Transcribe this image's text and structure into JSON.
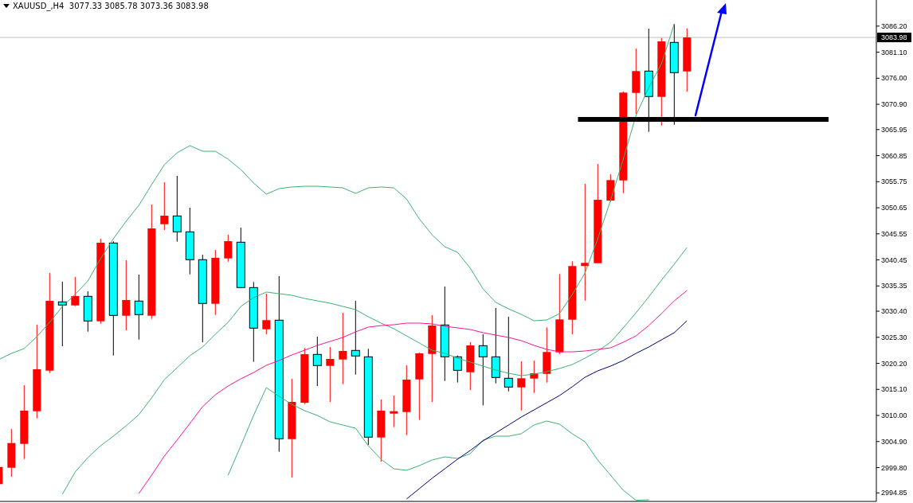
{
  "chart_data": {
    "type": "candlestick",
    "title": "XAUUSD_,H4  3077.33 3085.78 3073.36 3083.98",
    "categories": [
      null,
      null,
      null,
      null,
      null,
      null,
      null,
      null,
      null,
      null,
      null,
      null,
      null,
      null,
      null,
      null,
      null,
      null,
      null,
      null,
      null,
      null,
      null,
      null,
      null,
      null,
      null,
      null,
      null,
      null,
      null,
      null,
      null,
      null,
      null,
      null,
      null,
      null,
      null,
      null,
      null,
      null,
      null,
      null,
      null,
      null,
      null,
      null,
      null,
      null,
      null,
      null,
      null,
      null,
      null
    ],
    "ohlc": [
      [
        2996.56,
        3000.3,
        2996.3,
        2999.92
      ],
      [
        2999.77,
        3007.35,
        2998.01,
        3004.6
      ],
      [
        3004.44,
        3015.92,
        3001.48,
        3010.94
      ],
      [
        3010.83,
        3027.76,
        3009.43,
        3019.04
      ],
      [
        3018.77,
        3037.88,
        3018.3,
        3032.43
      ],
      [
        3032.23,
        3036.17,
        3023.55,
        3031.61
      ],
      [
        3031.54,
        3037.11,
        3031.39,
        3033.37
      ],
      [
        3033.32,
        3034.3,
        3026.4,
        3028.49
      ],
      [
        3028.43,
        3044.58,
        3027.96,
        3043.8
      ],
      [
        3043.75,
        3044.07,
        3021.73,
        3029.58
      ],
      [
        3029.52,
        3040.38,
        3026.67,
        3032.59
      ],
      [
        3032.39,
        3037.57,
        3024.85,
        3029.74
      ],
      [
        3029.52,
        3051.28,
        3028.9,
        3046.61
      ],
      [
        3047.43,
        3055.64,
        3046.29,
        3049.1
      ],
      [
        3049.05,
        3056.89,
        3044.01,
        3045.94
      ],
      [
        3045.94,
        3050.66,
        3037.62,
        3040.49
      ],
      [
        3040.49,
        3041.47,
        3024.33,
        3031.92
      ],
      [
        3031.86,
        3042.4,
        3029.68,
        3040.85
      ],
      [
        3040.74,
        3045.36,
        3040.11,
        3044.11
      ],
      [
        3043.91,
        3046.76,
        3035.03,
        3035.03
      ],
      [
        3035.03,
        3036.12,
        3020.49,
        3027.09
      ],
      [
        3026.87,
        3033.83,
        3025.89,
        3028.65
      ],
      [
        3028.65,
        3037.26,
        3002.89,
        3005.44
      ],
      [
        3005.37,
        3017.17,
        2997.85,
        3012.65
      ],
      [
        3012.49,
        3023.19,
        3012.23,
        3021.99
      ],
      [
        3021.95,
        3025.42,
        3015.77,
        3019.77
      ],
      [
        3019.71,
        3023.4,
        3012.65,
        3021.06
      ],
      [
        3020.95,
        3030.1,
        3016.13,
        3022.62
      ],
      [
        3022.73,
        3032.43,
        3017.99,
        3021.64
      ],
      [
        3021.48,
        3023.04,
        3004.24,
        3005.75
      ],
      [
        3005.69,
        3013.12,
        3000.97,
        3010.94
      ],
      [
        3010.36,
        3013.9,
        3007.72,
        3010.83
      ],
      [
        3010.67,
        3019.82,
        3006.16,
        3017.01
      ],
      [
        3017.06,
        3022.31,
        3009.12,
        3022.15
      ],
      [
        3022.04,
        3029.63,
        3012.65,
        3027.6
      ],
      [
        3027.71,
        3035.24,
        3016.75,
        3021.48
      ],
      [
        3021.48,
        3021.73,
        3016.44,
        3018.83
      ],
      [
        3018.46,
        3024.33,
        3014.99,
        3023.71
      ],
      [
        3023.66,
        3025.89,
        3011.98,
        3021.48
      ],
      [
        3021.48,
        3031.03,
        3016.28,
        3017.43
      ],
      [
        3017.28,
        3029.32,
        3014.72,
        3015.56
      ],
      [
        3015.5,
        3020.59,
        3010.98,
        3017.28
      ],
      [
        3017.22,
        3020.75,
        3014.41,
        3018.26
      ],
      [
        3018.15,
        3027.24,
        3016.44,
        3022.42
      ],
      [
        3022.36,
        3037.68,
        3022.04,
        3028.8
      ],
      [
        3028.74,
        3040.17,
        3025.89,
        3039.24
      ],
      [
        3039.24,
        3055.33,
        3032.48,
        3039.86
      ],
      [
        3039.8,
        3059.22,
        3039.8,
        3052.21
      ],
      [
        3052.06,
        3057.2,
        3051.79,
        3056.06
      ],
      [
        3056,
        3073.4,
        3053.51,
        3073.19
      ],
      [
        3073.13,
        3081.81,
        3068.99,
        3077.4
      ],
      [
        3077.4,
        3085.7,
        3065.5,
        3072.42
      ],
      [
        3072.35,
        3083.88,
        3066.75,
        3083.21
      ],
      [
        3083.01,
        3086.64,
        3066.9,
        3077.09
      ],
      [
        3077.33,
        3085.78,
        3073.36,
        3083.98
      ]
    ],
    "colors": [
      "#ff0000",
      "#ff0000",
      "#ff0000",
      "#ff0000",
      "#ff0000",
      "#00ffff",
      "#ff0000",
      "#00ffff",
      "#ff0000",
      "#00ffff",
      "#ff0000",
      "#00ffff",
      "#ff0000",
      "#ff0000",
      "#00ffff",
      "#00ffff",
      "#00ffff",
      "#ff0000",
      "#ff0000",
      "#00ffff",
      "#00ffff",
      "#ff0000",
      "#00ffff",
      "#ff0000",
      "#ff0000",
      "#00ffff",
      "#ff0000",
      "#ff0000",
      "#00ffff",
      "#00ffff",
      "#ff0000",
      "#ff0000",
      "#ff0000",
      "#ff0000",
      "#ff0000",
      "#00ffff",
      "#00ffff",
      "#ff0000",
      "#00ffff",
      "#00ffff",
      "#00ffff",
      "#ff0000",
      "#ff0000",
      "#ff0000",
      "#ff0000",
      "#ff0000",
      "#ff0000",
      "#ff0000",
      "#ff0000",
      "#ff0000",
      "#ff0000",
      "#00ffff",
      "#ff0000",
      "#00ffff",
      "#ff0000"
    ],
    "series": [
      {
        "type": "line",
        "color": "#3cb371",
        "values": [
          3020.91,
          3022.15,
          3023.09,
          3025.42,
          3028.23,
          3031.34,
          3033.68,
          3036.33,
          3040.69,
          3044.58,
          3048.01,
          3051.12,
          3055.17,
          3059.07,
          3061.4,
          3062.81,
          3061.71,
          3061.71,
          3060.16,
          3058.13,
          3055.49,
          3053.31,
          3054.4,
          3054.71,
          3054.86,
          3054.86,
          3054.71,
          3054.55,
          3053.46,
          3054.55,
          3054.71,
          3054.55,
          3052.37,
          3048.48,
          3045.36,
          3043.02,
          3041.93,
          3038.82,
          3034.77,
          3032.12,
          3030.87,
          3029.78,
          3028.54,
          3028.69,
          3029.94,
          3033.68,
          3037.88,
          3044.58,
          3052.06,
          3060.16,
          3068.72,
          3074.18,
          3078.85,
          3086.64,
          null
        ]
      },
      {
        "type": "line",
        "color": "#3cb371",
        "values": [
          null,
          null,
          null,
          null,
          null,
          2994.58,
          2998.94,
          3001.75,
          3004.08,
          3005.95,
          3007.98,
          3010.16,
          3013.43,
          3017.01,
          3019.35,
          3021.69,
          3023.4,
          3025.89,
          3028.23,
          3031.34,
          3033.06,
          3034.15,
          3033.83,
          3033.52,
          3032.9,
          3032.43,
          3031.97,
          3031.34,
          3030.72,
          3029.32,
          3028.07,
          3026.98,
          3025.58,
          3024.18,
          3022.77,
          3022.15,
          3021.22,
          3020.44,
          3019.66,
          3018.88,
          3018.26,
          3017.79,
          3018.1,
          3018.57,
          3019.19,
          3019.97,
          3021.22,
          3022.62,
          3024.33,
          3027.14,
          3030.1,
          3033.21,
          3036.48,
          3039.6,
          3042.87
        ]
      },
      {
        "type": "line",
        "color": "#3cb371",
        "values": [
          null,
          null,
          null,
          null,
          null,
          null,
          null,
          null,
          null,
          null,
          null,
          null,
          null,
          null,
          null,
          null,
          null,
          null,
          2998.31,
          3004.08,
          3010.0,
          3015.45,
          3013.74,
          3012.18,
          3010.94,
          3010.0,
          3008.75,
          3008.13,
          3007.51,
          3004.08,
          3001.44,
          2999.57,
          2999.26,
          3000.19,
          3001.28,
          3001.9,
          3001.59,
          3002.53,
          3005.18,
          3005.95,
          3005.95,
          3006.42,
          3008.13,
          3008.91,
          3008.29,
          3006.42,
          3004.86,
          3001.28,
          2998.31,
          2995.36,
          2993.4,
          2993.49,
          null,
          null,
          null
        ]
      },
      {
        "type": "line",
        "color": "#ff1493",
        "values": [
          null,
          null,
          null,
          null,
          null,
          null,
          null,
          null,
          null,
          null,
          null,
          2994.74,
          2998.31,
          3002.06,
          3005.18,
          3008.44,
          3011.72,
          3014.05,
          3015.77,
          3017.17,
          3018.41,
          3019.82,
          3020.75,
          3021.84,
          3022.77,
          3023.71,
          3024.49,
          3025.27,
          3026.36,
          3027.29,
          3027.6,
          3027.76,
          3028.07,
          3028.07,
          3027.92,
          3027.45,
          3027.14,
          3026.82,
          3026.2,
          3025.73,
          3025.27,
          3024.64,
          3023.71,
          3022.93,
          3022.46,
          3022.46,
          3022.62,
          3022.93,
          3023.24,
          3024.33,
          3025.58,
          3027.6,
          3029.94,
          3032.43,
          3034.46
        ]
      },
      {
        "type": "line",
        "color": "#000080",
        "values": [
          null,
          null,
          null,
          null,
          null,
          null,
          null,
          null,
          null,
          null,
          null,
          null,
          null,
          null,
          null,
          null,
          null,
          null,
          null,
          null,
          null,
          null,
          null,
          null,
          null,
          null,
          null,
          null,
          null,
          null,
          null,
          null,
          2993.65,
          2995.67,
          2997.7,
          2999.57,
          3001.44,
          3003.15,
          3005.02,
          3006.58,
          3008.13,
          3009.69,
          3011.09,
          3012.49,
          3013.9,
          3015.61,
          3017.48,
          3018.73,
          3019.66,
          3020.75,
          3022.15,
          3023.4,
          3024.8,
          3026.2,
          3028.54
        ]
      }
    ],
    "ylim": [
      2993.18,
      3091.31
    ],
    "yticks": [
      {
        "value": 3086.2,
        "label": "3086.20"
      },
      {
        "value": 3081.1,
        "label": "3081.10"
      },
      {
        "value": 3076,
        "label": "3076.00"
      },
      {
        "value": 3070.9,
        "label": "3070.90"
      },
      3065.95,
      3060.85,
      3055.75,
      3050.65,
      3045.55,
      3040.45,
      3035.35,
      {
        "value": 3030.4,
        "label": "3030.40"
      },
      {
        "value": 3025.3,
        "label": "3025.30"
      },
      {
        "value": 3020.2,
        "label": "3020.20"
      },
      {
        "value": 3015.1,
        "label": "3015.10"
      },
      {
        "value": 3010,
        "label": "3010.00"
      },
      {
        "value": 3004.9,
        "label": "3004.90"
      },
      {
        "value": 2999.8,
        "label": "2999.80"
      },
      2994.85
    ],
    "ref_lines": [
      {
        "axis": "y",
        "value": 3083.98,
        "label": "3083.98",
        "color": "#c0c0c0"
      },
      {
        "axis": "y",
        "value": 3067.95,
        "label": null,
        "color": "#000000"
      }
    ]
  }
}
